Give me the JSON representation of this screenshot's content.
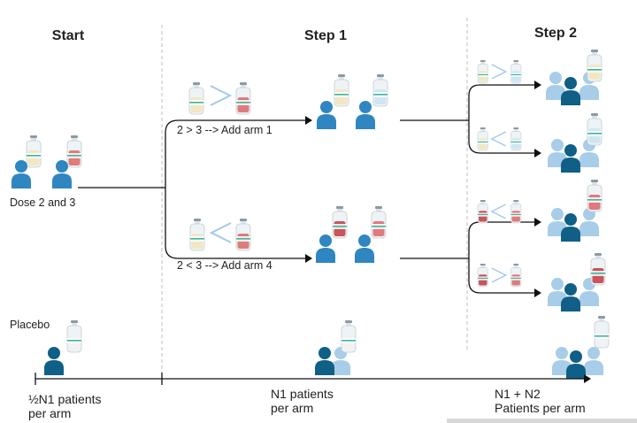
{
  "headers": {
    "start": "Start",
    "step1": "Step 1",
    "step2": "Step 2"
  },
  "labels": {
    "dose": "Dose 2 and 3",
    "branch_up": "2 > 3 --> Add arm 1",
    "branch_down": "2 < 3 --> Add arm 4",
    "placebo": "Placebo"
  },
  "timeline": {
    "start_line1": "½N1 patients",
    "start_line2": "per arm",
    "step1_line1": "N1 patients",
    "step1_line2": "per arm",
    "step2_line1": "N1 + N2",
    "step2_line2": "Patients per arm"
  },
  "colors": {
    "person_blue": "#2f86c0",
    "person_dark": "#0f5f86",
    "person_light": "#a7cde8",
    "liquid_yellow": "#f1e7c2",
    "liquid_red": "#e07a7c",
    "liquid_blue": "#cfe6f1",
    "liquid_white": "#f2f2f2",
    "liquid_darkred": "#c9545a"
  }
}
